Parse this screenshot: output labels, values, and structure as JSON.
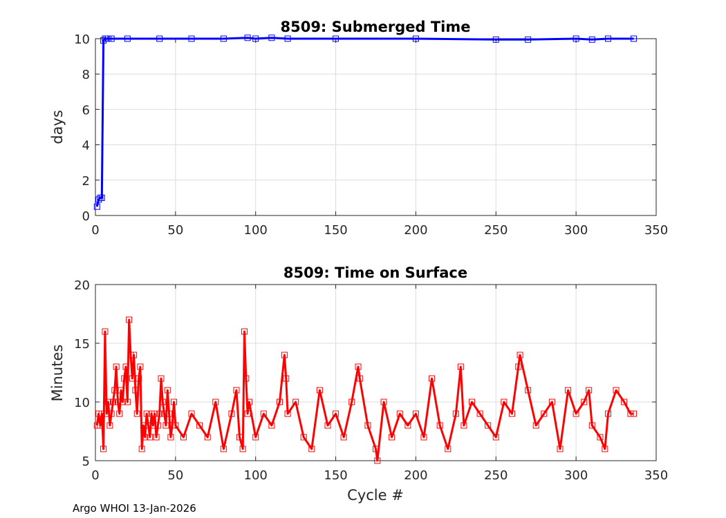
{
  "footer": "Argo WHOI 13-Jan-2026",
  "chart_data": [
    {
      "type": "line",
      "title": "8509: Submerged Time",
      "xlabel": "",
      "ylabel": "days",
      "xlim": [
        0,
        350
      ],
      "ylim": [
        0,
        10
      ],
      "xticks": [
        0,
        50,
        100,
        150,
        200,
        250,
        300,
        350
      ],
      "yticks": [
        0,
        2,
        4,
        6,
        8,
        10
      ],
      "grid": true,
      "color": "#0000ff",
      "marker": "square",
      "series": [
        {
          "x": [
            1,
            2,
            3,
            4,
            5,
            6,
            7,
            8,
            10,
            20,
            40,
            60,
            80,
            95,
            100,
            110,
            120,
            150,
            200,
            250,
            270,
            300,
            310,
            320,
            336
          ],
          "y": [
            0.5,
            0.9,
            1.0,
            1.0,
            9.9,
            10.0,
            10.0,
            10.0,
            10.0,
            10.0,
            10.0,
            10.0,
            10.0,
            10.05,
            10.0,
            10.05,
            10.0,
            10.0,
            10.0,
            9.95,
            9.95,
            10.0,
            9.95,
            10.0,
            10.0
          ]
        }
      ]
    },
    {
      "type": "line",
      "title": "8509: Time on Surface",
      "xlabel": "Cycle #",
      "ylabel": "Minutes",
      "xlim": [
        0,
        350
      ],
      "ylim": [
        5,
        20
      ],
      "xticks": [
        0,
        50,
        100,
        150,
        200,
        250,
        300,
        350
      ],
      "yticks": [
        5,
        10,
        15,
        20
      ],
      "grid": true,
      "color": "#ff0000",
      "marker": "square",
      "series": [
        {
          "x": [
            1,
            2,
            3,
            4,
            5,
            6,
            7,
            8,
            9,
            10,
            11,
            12,
            13,
            14,
            15,
            16,
            17,
            18,
            19,
            20,
            21,
            22,
            23,
            24,
            25,
            26,
            27,
            28,
            29,
            30,
            31,
            32,
            33,
            34,
            35,
            36,
            37,
            38,
            39,
            40,
            41,
            42,
            43,
            44,
            45,
            46,
            47,
            48,
            49,
            50,
            55,
            60,
            65,
            70,
            75,
            80,
            85,
            88,
            90,
            92,
            93,
            94,
            95,
            96,
            100,
            105,
            110,
            115,
            118,
            119,
            120,
            125,
            130,
            135,
            140,
            145,
            150,
            155,
            160,
            164,
            165,
            170,
            175,
            176,
            180,
            185,
            190,
            195,
            200,
            205,
            210,
            215,
            220,
            225,
            228,
            230,
            235,
            240,
            245,
            250,
            255,
            260,
            264,
            265,
            270,
            275,
            280,
            285,
            290,
            295,
            300,
            305,
            308,
            310,
            315,
            318,
            320,
            325,
            330,
            334,
            336
          ],
          "y": [
            8,
            9,
            8,
            9,
            6,
            16,
            9,
            10,
            8,
            9,
            10,
            11,
            13,
            10,
            9,
            11,
            10,
            12,
            13,
            10,
            17,
            14,
            12,
            14,
            11,
            9,
            12,
            13,
            6,
            8,
            7,
            9,
            8,
            7,
            9,
            8,
            9,
            7,
            8,
            9,
            12,
            10,
            9,
            8,
            11,
            9,
            7,
            8,
            10,
            8,
            7,
            9,
            8,
            7,
            10,
            6,
            9,
            11,
            7,
            6,
            16,
            12,
            9,
            10,
            7,
            9,
            8,
            10,
            14,
            12,
            9,
            10,
            7,
            6,
            11,
            8,
            9,
            7,
            10,
            13,
            12,
            8,
            6,
            5,
            10,
            7,
            9,
            8,
            9,
            7,
            12,
            8,
            6,
            9,
            13,
            8,
            10,
            9,
            8,
            7,
            10,
            9,
            13,
            14,
            11,
            8,
            9,
            10,
            6,
            11,
            9,
            10,
            11,
            8,
            7,
            6,
            9,
            11,
            10,
            9,
            9
          ]
        }
      ]
    }
  ]
}
